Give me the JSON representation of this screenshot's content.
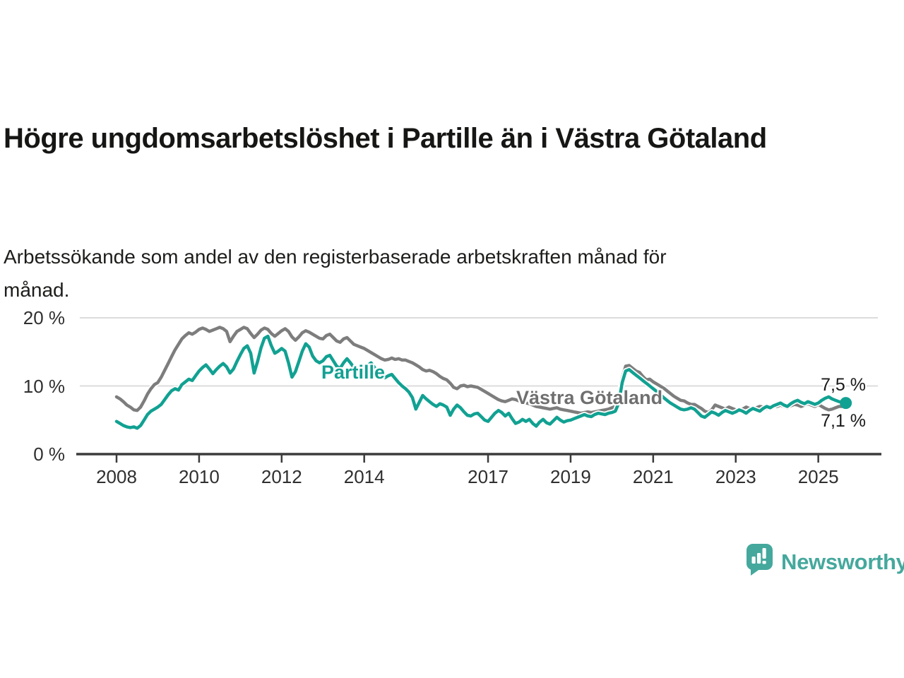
{
  "header": {
    "title": "Högre ungdomsarbetslöshet i Partille än i Västra Götaland",
    "subtitle_lines": [
      "Arbetssökande som andel av den registerbaserade arbetskraften månad för",
      "månad."
    ]
  },
  "chart_data": {
    "type": "line",
    "unit": "%",
    "x_start": 2008.0,
    "points_per_year": 12,
    "ylim": [
      0,
      20
    ],
    "grid": "horizontal gridlines at 10 and 20",
    "legend_position": "inline labels on lines",
    "y_ticks": [
      {
        "value": 20,
        "label": "20 %"
      },
      {
        "value": 10,
        "label": "10 %"
      },
      {
        "value": 0,
        "label": "0 %"
      }
    ],
    "x_tick_years": [
      2008,
      2010,
      2012,
      2014,
      2017,
      2019,
      2021,
      2023,
      2025
    ],
    "x_tick_labels": [
      "2008",
      "2010",
      "2012",
      "2014",
      "2017",
      "2019",
      "2021",
      "2023",
      "2025"
    ],
    "series": [
      {
        "name": "Västra Götaland",
        "color": "#7d7d7d",
        "values": [
          8.4,
          8.1,
          7.7,
          7.2,
          6.9,
          6.5,
          6.4,
          6.9,
          7.8,
          8.8,
          9.6,
          10.2,
          10.5,
          11.3,
          12.3,
          13.3,
          14.3,
          15.3,
          16.1,
          16.9,
          17.4,
          17.8,
          17.6,
          17.9,
          18.3,
          18.5,
          18.3,
          18.0,
          18.2,
          18.4,
          18.6,
          18.4,
          18.0,
          16.5,
          17.3,
          18.0,
          18.3,
          18.6,
          18.4,
          17.7,
          17.1,
          17.6,
          18.2,
          18.5,
          18.3,
          17.7,
          17.3,
          17.7,
          18.1,
          18.4,
          18.0,
          17.2,
          16.7,
          17.2,
          17.8,
          18.1,
          17.9,
          17.6,
          17.3,
          17.0,
          16.9,
          17.4,
          17.6,
          17.1,
          16.6,
          16.4,
          16.9,
          17.1,
          16.6,
          16.1,
          15.9,
          15.7,
          15.5,
          15.2,
          14.9,
          14.6,
          14.3,
          14.0,
          13.8,
          13.9,
          14.1,
          13.9,
          14.0,
          13.8,
          13.8,
          13.6,
          13.4,
          13.1,
          12.8,
          12.4,
          12.2,
          12.3,
          12.1,
          11.8,
          11.4,
          11.1,
          10.9,
          10.4,
          9.8,
          9.6,
          10.0,
          10.1,
          9.9,
          10.0,
          9.9,
          9.8,
          9.5,
          9.2,
          8.9,
          8.6,
          8.3,
          8.0,
          7.8,
          7.7,
          7.9,
          8.1,
          8.0,
          7.8,
          7.6,
          7.5,
          7.4,
          7.2,
          7.0,
          6.9,
          6.8,
          6.7,
          6.6,
          6.7,
          6.8,
          6.6,
          6.5,
          6.4,
          6.3,
          6.2,
          6.1,
          6.0,
          6.1,
          6.2,
          6.1,
          6.2,
          6.3,
          6.4,
          6.5,
          6.6,
          6.8,
          7.0,
          8.2,
          11.2,
          12.9,
          13.0,
          12.6,
          12.2,
          12.0,
          11.4,
          10.9,
          11.0,
          10.6,
          10.3,
          10.0,
          9.7,
          9.3,
          8.9,
          8.5,
          8.2,
          7.9,
          7.8,
          7.5,
          7.3,
          7.3,
          7.0,
          6.7,
          6.3,
          6.1,
          6.5,
          7.2,
          7.0,
          6.8,
          6.6,
          6.9,
          6.7,
          6.5,
          6.3,
          6.6,
          6.9,
          6.7,
          6.5,
          6.8,
          7.0,
          6.9,
          6.7,
          6.9,
          7.0,
          7.0,
          7.2,
          7.0,
          6.8,
          7.1,
          7.3,
          7.2,
          7.0,
          7.2,
          7.4,
          7.2,
          7.0,
          7.3,
          7.0,
          6.7,
          6.5,
          6.6,
          6.8,
          7.0,
          7.0,
          7.1
        ]
      },
      {
        "name": "Partille",
        "color": "#11a192",
        "values": [
          4.8,
          4.5,
          4.2,
          4.0,
          3.9,
          4.0,
          3.8,
          4.2,
          5.0,
          5.8,
          6.3,
          6.6,
          6.9,
          7.3,
          8.0,
          8.7,
          9.3,
          9.6,
          9.4,
          10.2,
          10.6,
          11.0,
          10.8,
          11.5,
          12.2,
          12.7,
          13.1,
          12.5,
          11.8,
          12.4,
          12.9,
          13.3,
          12.8,
          11.9,
          12.5,
          13.6,
          14.6,
          15.5,
          15.9,
          14.8,
          11.9,
          13.6,
          15.6,
          17.0,
          17.3,
          15.9,
          14.8,
          15.1,
          15.5,
          15.1,
          13.4,
          11.3,
          12.1,
          13.6,
          15.1,
          16.2,
          15.7,
          14.4,
          13.7,
          13.4,
          13.7,
          14.3,
          14.5,
          13.7,
          12.9,
          12.6,
          13.4,
          14.0,
          13.4,
          12.7,
          12.3,
          12.1,
          12.4,
          13.0,
          13.4,
          12.7,
          12.0,
          11.6,
          11.2,
          11.5,
          11.7,
          11.1,
          10.5,
          10.0,
          9.6,
          9.1,
          8.3,
          6.6,
          7.6,
          8.6,
          8.1,
          7.7,
          7.3,
          7.0,
          7.4,
          7.2,
          6.9,
          5.7,
          6.6,
          7.2,
          6.8,
          6.2,
          5.7,
          5.6,
          5.9,
          6.0,
          5.5,
          5.0,
          4.8,
          5.4,
          6.0,
          6.4,
          6.1,
          5.6,
          6.0,
          5.2,
          4.5,
          4.7,
          5.1,
          4.8,
          5.1,
          4.5,
          4.1,
          4.7,
          5.1,
          4.6,
          4.4,
          4.9,
          5.4,
          5.0,
          4.7,
          4.9,
          5.0,
          5.2,
          5.4,
          5.6,
          5.8,
          5.6,
          5.5,
          5.8,
          6.0,
          5.9,
          5.8,
          6.0,
          6.1,
          6.3,
          7.5,
          10.5,
          12.2,
          12.4,
          12.0,
          11.6,
          11.2,
          10.8,
          10.4,
          10.0,
          9.6,
          9.2,
          8.8,
          8.3,
          7.9,
          7.5,
          7.2,
          6.9,
          6.6,
          6.5,
          6.6,
          6.8,
          6.6,
          6.1,
          5.6,
          5.4,
          5.8,
          6.2,
          6.0,
          5.7,
          6.1,
          6.4,
          6.2,
          6.0,
          6.2,
          6.5,
          6.3,
          6.0,
          6.4,
          6.7,
          6.5,
          6.3,
          6.7,
          7.0,
          6.8,
          7.1,
          7.3,
          7.5,
          7.2,
          7.0,
          7.4,
          7.7,
          7.9,
          7.6,
          7.4,
          7.7,
          7.5,
          7.3,
          7.5,
          7.9,
          8.2,
          8.4,
          8.1,
          7.9,
          7.7,
          7.6,
          7.5
        ]
      }
    ],
    "annotations": {
      "series_labels": [
        {
          "text": "Partille",
          "color": "#13a092",
          "x": 455,
          "y": 512
        },
        {
          "text": "Västra Götaland",
          "color": "#6f6f6f",
          "x": 731,
          "y": 548
        }
      ],
      "end_labels": [
        {
          "text": "7,5 %",
          "y": 531
        },
        {
          "text": "7,1 %",
          "y": 582
        }
      ],
      "end_dot_series": "Partille",
      "end_values": {
        "Partille": 7.5,
        "Västra Götaland": 7.1
      }
    },
    "colors": {
      "grid": "#dcdcdc",
      "axis": "#3b3b3b"
    }
  },
  "branding": {
    "name": "Newsworthy",
    "color": "#45a89d",
    "icon": "newsworthy-barchart-pin-icon"
  }
}
